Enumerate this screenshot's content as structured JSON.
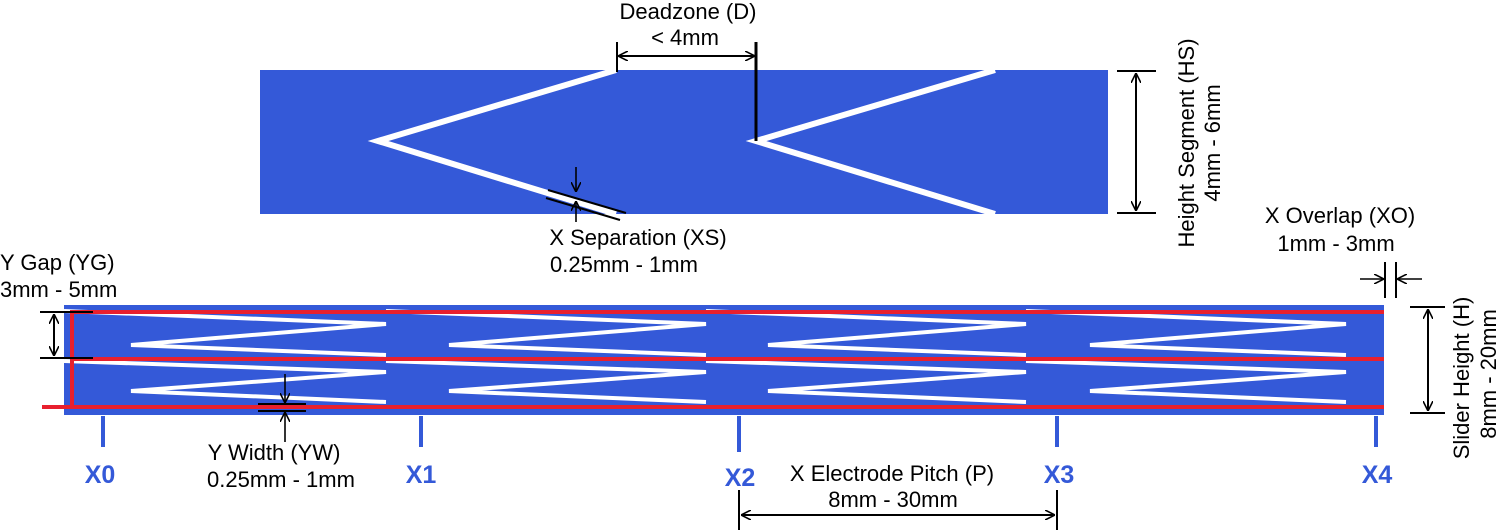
{
  "colors": {
    "electrode": "#3459d8",
    "y_trace": "#e8202e",
    "gap": "#ffffff",
    "dimension": "#000000",
    "electrode_label": "#3459d8"
  },
  "labels": {
    "deadzone_title": "Deadzone (D)",
    "deadzone_value": "< 4mm",
    "height_segment_title": "Height Segment (HS)",
    "height_segment_value": "4mm - 6mm",
    "x_separation_title": "X Separation (XS)",
    "x_separation_value": "0.25mm - 1mm",
    "x_overlap_title": "X Overlap (XO)",
    "x_overlap_value": "1mm - 3mm",
    "y_gap_title": "Y Gap (YG)",
    "y_gap_value": "3mm - 5mm",
    "y_width_title": "Y Width (YW)",
    "y_width_value": "0.25mm - 1mm",
    "slider_height_title": "Slider Height (H)",
    "slider_height_value": "8mm - 20mm",
    "pitch_title": "X Electrode Pitch (P)",
    "pitch_value": "8mm - 30mm"
  },
  "electrodes": [
    "X0",
    "X1",
    "X2",
    "X3",
    "X4"
  ]
}
